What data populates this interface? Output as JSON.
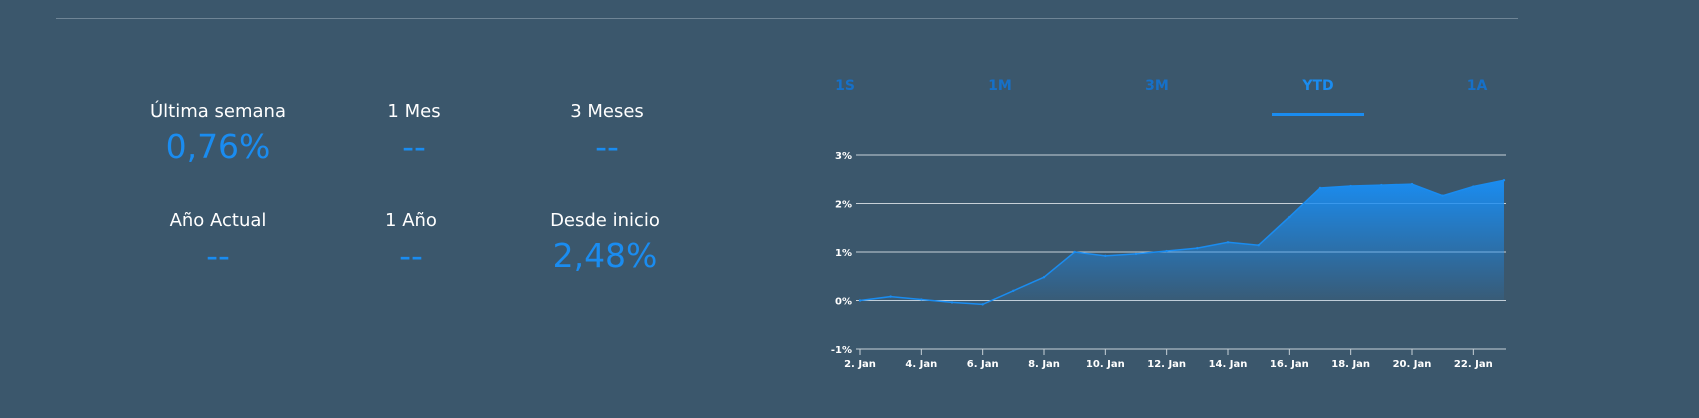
{
  "stats": [
    {
      "label": "Última semana",
      "value": "0,76%"
    },
    {
      "label": "1 Mes",
      "value": "--"
    },
    {
      "label": "3 Meses",
      "value": "--"
    },
    {
      "label": "Año Actual",
      "value": "--"
    },
    {
      "label": "1 Año",
      "value": "--"
    },
    {
      "label": "Desde inicio",
      "value": "2,48%"
    }
  ],
  "tabs": [
    {
      "label": "1S",
      "active": false
    },
    {
      "label": "1M",
      "active": false
    },
    {
      "label": "3M",
      "active": false
    },
    {
      "label": "YTD",
      "active": true
    },
    {
      "label": "1A",
      "active": false
    }
  ],
  "colors": {
    "background": "#3b576c",
    "accent": "#1a8cf0",
    "inactive_tab": "#1670c8",
    "gridline": "#c7d0d7"
  },
  "chart_data": {
    "type": "area",
    "x": [
      "2. Jan",
      "3. Jan",
      "4. Jan",
      "5. Jan",
      "6. Jan",
      "7. Jan",
      "8. Jan",
      "9. Jan",
      "10. Jan",
      "11. Jan",
      "12. Jan",
      "13. Jan",
      "14. Jan",
      "15. Jan",
      "16. Jan",
      "17. Jan",
      "18. Jan",
      "19. Jan",
      "20. Jan",
      "21. Jan",
      "22. Jan",
      "23. Jan"
    ],
    "values": [
      0.0,
      0.08,
      0.02,
      -0.04,
      -0.08,
      0.2,
      0.48,
      1.0,
      0.92,
      0.96,
      1.02,
      1.08,
      1.2,
      1.14,
      1.72,
      2.32,
      2.36,
      2.38,
      2.4,
      2.16,
      2.35,
      2.48
    ],
    "xticks": [
      "2. Jan",
      "4. Jan",
      "6. Jan",
      "8. Jan",
      "10. Jan",
      "12. Jan",
      "14. Jan",
      "16. Jan",
      "18. Jan",
      "20. Jan",
      "22. Jan"
    ],
    "yticks": [
      "-1%",
      "0%",
      "1%",
      "2%",
      "3%"
    ],
    "ylim": [
      -1,
      3
    ],
    "grid": true,
    "legend": "none"
  }
}
